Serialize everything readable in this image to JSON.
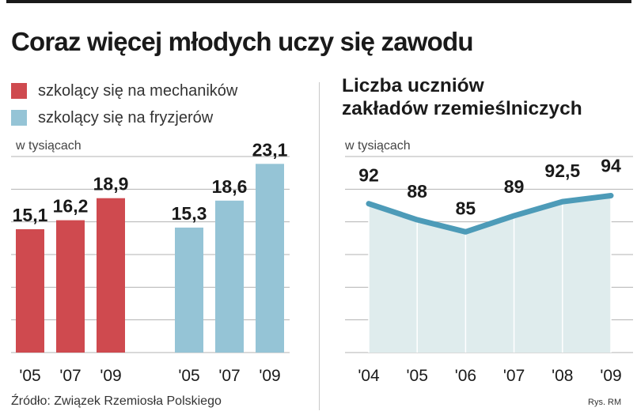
{
  "headline": "Coraz więcej młodych uczy się zawodu",
  "source": "Źródło: Związek Rzemiosła Polskiego",
  "credit": "Rys. RM",
  "colors": {
    "mechanics": "#cf4a4f",
    "hairdressers": "#95c4d6",
    "line": "#4d9bb8",
    "area": "#dfeced",
    "grid": "#b3b3b3"
  },
  "chart_data": [
    {
      "type": "bar",
      "unit": "w tysiącach",
      "ylim": [
        0,
        24
      ],
      "grid": true,
      "series": [
        {
          "name": "szkolący się na mechaników",
          "color": "#cf4a4f",
          "categories": [
            "'05",
            "'07",
            "'09"
          ],
          "values": [
            15.1,
            16.2,
            18.9
          ],
          "labels": [
            "15,1",
            "16,2",
            "18,9"
          ]
        },
        {
          "name": "szkolący się na fryzjerów",
          "color": "#95c4d6",
          "categories": [
            "'05",
            "'07",
            "'09"
          ],
          "values": [
            15.3,
            18.6,
            23.1
          ],
          "labels": [
            "15,3",
            "18,6",
            "23,1"
          ]
        }
      ]
    },
    {
      "type": "area",
      "title": [
        "Liczba uczniów",
        "zakładów rzemieślniczych"
      ],
      "unit": "w tysiącach",
      "grid": true,
      "categories": [
        "'04",
        "'05",
        "'06",
        "'07",
        "'08",
        "'09"
      ],
      "values": [
        92,
        88,
        85,
        89,
        92.5,
        94
      ],
      "labels": [
        "92",
        "88",
        "85",
        "89",
        "92,5",
        "94"
      ]
    }
  ]
}
